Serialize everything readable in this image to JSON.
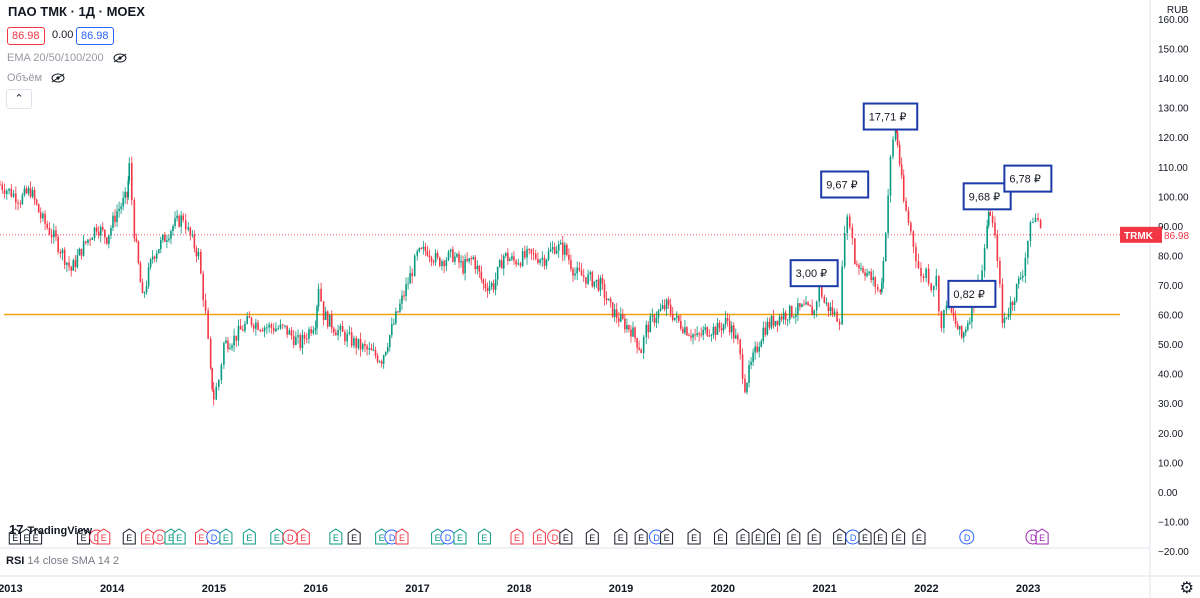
{
  "header": {
    "title": "ПАО ТМК · 1Д · MOEX",
    "bid": "86.98",
    "spread": "0.00",
    "ask": "86.98",
    "indicators": [
      "EMA 20/50/100/200",
      "Объём"
    ],
    "collapse_icon": "chevron-up-icon"
  },
  "currency": "RUB",
  "ticker_label": {
    "symbol": "TRMK",
    "value": "86.98"
  },
  "rsi_label": {
    "name": "RSI",
    "params": "14 close SMA 14 2"
  },
  "logo": "TradingView",
  "colors": {
    "up": "#089981",
    "down": "#f23645",
    "level": "#f0a30a",
    "box": "#1c3aa9",
    "price": "#f23645"
  },
  "chart_data": {
    "type": "candlestick",
    "ylim": [
      -20,
      160
    ],
    "y_ticks": [
      160,
      150,
      140,
      130,
      120,
      110,
      100,
      90,
      80,
      70,
      60,
      50,
      40,
      30,
      20,
      10,
      0,
      -10,
      -20
    ],
    "y_tick_labels": [
      "160.00",
      "150.00",
      "140.00",
      "130.00",
      "120.00",
      "110.00",
      "100.00",
      "90.00",
      "80.00",
      "70.00",
      "60.00",
      "50.00",
      "40.00",
      "30.00",
      "20.00",
      "10.00",
      "0.00",
      "−10.00",
      "−20.00"
    ],
    "x_tick_labels": [
      "2013",
      "2014",
      "2015",
      "2016",
      "2017",
      "2018",
      "2019",
      "2020",
      "2021",
      "2022",
      "2023"
    ],
    "x_tick_years": [
      2013,
      2014,
      2015,
      2016,
      2017,
      2018,
      2019,
      2020,
      2021,
      2022,
      2023
    ],
    "xlim": [
      2012.9,
      2024.2
    ],
    "last_price": 86.98,
    "horizontal_level": 60,
    "price_path": [
      [
        2012.9,
        104
      ],
      [
        2013.1,
        99
      ],
      [
        2013.2,
        102
      ],
      [
        2013.3,
        93
      ],
      [
        2013.45,
        85
      ],
      [
        2013.6,
        75
      ],
      [
        2013.7,
        82
      ],
      [
        2013.85,
        90
      ],
      [
        2013.95,
        86
      ],
      [
        2014.05,
        95
      ],
      [
        2014.15,
        100
      ],
      [
        2014.17,
        110
      ],
      [
        2014.22,
        88
      ],
      [
        2014.3,
        65
      ],
      [
        2014.4,
        80
      ],
      [
        2014.5,
        85
      ],
      [
        2014.6,
        90
      ],
      [
        2014.7,
        93
      ],
      [
        2014.75,
        88
      ],
      [
        2014.85,
        80
      ],
      [
        2014.92,
        60
      ],
      [
        2014.97,
        40
      ],
      [
        2015.0,
        32
      ],
      [
        2015.05,
        38
      ],
      [
        2015.1,
        50
      ],
      [
        2015.2,
        52
      ],
      [
        2015.35,
        58
      ],
      [
        2015.5,
        56
      ],
      [
        2015.7,
        55
      ],
      [
        2015.85,
        50
      ],
      [
        2016.0,
        58
      ],
      [
        2016.03,
        70
      ],
      [
        2016.08,
        60
      ],
      [
        2016.2,
        55
      ],
      [
        2016.4,
        50
      ],
      [
        2016.55,
        47
      ],
      [
        2016.65,
        45
      ],
      [
        2016.75,
        55
      ],
      [
        2016.85,
        65
      ],
      [
        2016.95,
        75
      ],
      [
        2017.0,
        80
      ],
      [
        2017.1,
        82
      ],
      [
        2017.2,
        78
      ],
      [
        2017.35,
        80
      ],
      [
        2017.45,
        76
      ],
      [
        2017.55,
        79
      ],
      [
        2017.65,
        70
      ],
      [
        2017.75,
        70
      ],
      [
        2017.85,
        80
      ],
      [
        2017.95,
        78
      ],
      [
        2018.1,
        80
      ],
      [
        2018.25,
        79
      ],
      [
        2018.35,
        83
      ],
      [
        2018.45,
        82
      ],
      [
        2018.55,
        74
      ],
      [
        2018.7,
        72
      ],
      [
        2018.8,
        70
      ],
      [
        2018.9,
        62
      ],
      [
        2019.0,
        58
      ],
      [
        2019.1,
        55
      ],
      [
        2019.2,
        48
      ],
      [
        2019.25,
        55
      ],
      [
        2019.35,
        60
      ],
      [
        2019.45,
        63
      ],
      [
        2019.55,
        58
      ],
      [
        2019.65,
        55
      ],
      [
        2019.75,
        52
      ],
      [
        2019.85,
        55
      ],
      [
        2019.95,
        55
      ],
      [
        2020.05,
        58
      ],
      [
        2020.15,
        50
      ],
      [
        2020.22,
        36
      ],
      [
        2020.3,
        45
      ],
      [
        2020.4,
        55
      ],
      [
        2020.5,
        58
      ],
      [
        2020.6,
        60
      ],
      [
        2020.7,
        61
      ],
      [
        2020.8,
        62
      ],
      [
        2020.9,
        61
      ],
      [
        2020.95,
        70
      ],
      [
        2021.0,
        64
      ],
      [
        2021.1,
        60
      ],
      [
        2021.15,
        59
      ],
      [
        2021.2,
        90
      ],
      [
        2021.25,
        92
      ],
      [
        2021.3,
        78
      ],
      [
        2021.4,
        75
      ],
      [
        2021.5,
        70
      ],
      [
        2021.55,
        67
      ],
      [
        2021.58,
        78
      ],
      [
        2021.65,
        112
      ],
      [
        2021.7,
        125
      ],
      [
        2021.72,
        118
      ],
      [
        2021.78,
        98
      ],
      [
        2021.85,
        88
      ],
      [
        2021.9,
        80
      ],
      [
        2021.95,
        72
      ],
      [
        2022.0,
        75
      ],
      [
        2022.05,
        70
      ],
      [
        2022.1,
        72
      ],
      [
        2022.15,
        55
      ],
      [
        2022.2,
        65
      ],
      [
        2022.25,
        60
      ],
      [
        2022.35,
        52
      ],
      [
        2022.45,
        62
      ],
      [
        2022.55,
        75
      ],
      [
        2022.6,
        90
      ],
      [
        2022.63,
        95
      ],
      [
        2022.7,
        80
      ],
      [
        2022.75,
        57
      ],
      [
        2022.85,
        65
      ],
      [
        2022.95,
        75
      ],
      [
        2023.0,
        85
      ],
      [
        2023.05,
        93
      ],
      [
        2023.1,
        92
      ],
      [
        2023.15,
        87
      ]
    ],
    "annotations": [
      {
        "label": "3,00 ₽",
        "x": 2020.9,
        "y": 74
      },
      {
        "label": "9,67 ₽",
        "x": 2021.2,
        "y": 104
      },
      {
        "label": "17,71 ₽",
        "x": 2021.65,
        "y": 127
      },
      {
        "label": "9,68 ₽",
        "x": 2022.6,
        "y": 100
      },
      {
        "label": "0,82 ₽",
        "x": 2022.45,
        "y": 67
      },
      {
        "label": "6,78 ₽",
        "x": 2023.0,
        "y": 106
      }
    ],
    "event_markers": [
      {
        "x": 2013.05,
        "l": "E",
        "c": "#131722"
      },
      {
        "x": 2013.16,
        "l": "E",
        "c": "#131722"
      },
      {
        "x": 2013.25,
        "l": "E",
        "c": "#131722"
      },
      {
        "x": 2013.72,
        "l": "E",
        "c": "#131722"
      },
      {
        "x": 2013.85,
        "l": "D",
        "c": "#f23645"
      },
      {
        "x": 2013.92,
        "l": "E",
        "c": "#f23645"
      },
      {
        "x": 2014.17,
        "l": "E",
        "c": "#131722"
      },
      {
        "x": 2014.35,
        "l": "E",
        "c": "#f23645"
      },
      {
        "x": 2014.47,
        "l": "D",
        "c": "#f23645"
      },
      {
        "x": 2014.58,
        "l": "E",
        "c": "#089981"
      },
      {
        "x": 2014.66,
        "l": "E",
        "c": "#089981"
      },
      {
        "x": 2014.88,
        "l": "E",
        "c": "#f23645"
      },
      {
        "x": 2015.0,
        "l": "D",
        "c": "#2962ff"
      },
      {
        "x": 2015.12,
        "l": "E",
        "c": "#089981"
      },
      {
        "x": 2015.35,
        "l": "E",
        "c": "#089981"
      },
      {
        "x": 2015.62,
        "l": "E",
        "c": "#089981"
      },
      {
        "x": 2015.75,
        "l": "D",
        "c": "#f23645"
      },
      {
        "x": 2015.88,
        "l": "E",
        "c": "#f23645"
      },
      {
        "x": 2016.2,
        "l": "E",
        "c": "#089981"
      },
      {
        "x": 2016.38,
        "l": "E",
        "c": "#131722"
      },
      {
        "x": 2016.65,
        "l": "E",
        "c": "#089981"
      },
      {
        "x": 2016.75,
        "l": "D",
        "c": "#2962ff"
      },
      {
        "x": 2016.85,
        "l": "E",
        "c": "#f23645"
      },
      {
        "x": 2017.2,
        "l": "E",
        "c": "#089981"
      },
      {
        "x": 2017.3,
        "l": "D",
        "c": "#2962ff"
      },
      {
        "x": 2017.42,
        "l": "E",
        "c": "#089981"
      },
      {
        "x": 2017.66,
        "l": "E",
        "c": "#089981"
      },
      {
        "x": 2017.98,
        "l": "E",
        "c": "#f23645"
      },
      {
        "x": 2018.2,
        "l": "E",
        "c": "#f23645"
      },
      {
        "x": 2018.35,
        "l": "D",
        "c": "#f23645"
      },
      {
        "x": 2018.46,
        "l": "E",
        "c": "#131722"
      },
      {
        "x": 2018.72,
        "l": "E",
        "c": "#131722"
      },
      {
        "x": 2019.0,
        "l": "E",
        "c": "#131722"
      },
      {
        "x": 2019.2,
        "l": "E",
        "c": "#131722"
      },
      {
        "x": 2019.35,
        "l": "D",
        "c": "#2962ff"
      },
      {
        "x": 2019.45,
        "l": "E",
        "c": "#131722"
      },
      {
        "x": 2019.72,
        "l": "E",
        "c": "#131722"
      },
      {
        "x": 2019.98,
        "l": "E",
        "c": "#131722"
      },
      {
        "x": 2020.2,
        "l": "E",
        "c": "#131722"
      },
      {
        "x": 2020.35,
        "l": "E",
        "c": "#131722"
      },
      {
        "x": 2020.5,
        "l": "E",
        "c": "#131722"
      },
      {
        "x": 2020.7,
        "l": "E",
        "c": "#131722"
      },
      {
        "x": 2020.9,
        "l": "E",
        "c": "#131722"
      },
      {
        "x": 2021.15,
        "l": "E",
        "c": "#131722"
      },
      {
        "x": 2021.28,
        "l": "D",
        "c": "#2962ff"
      },
      {
        "x": 2021.4,
        "l": "E",
        "c": "#131722"
      },
      {
        "x": 2021.55,
        "l": "E",
        "c": "#131722"
      },
      {
        "x": 2021.73,
        "l": "E",
        "c": "#131722"
      },
      {
        "x": 2021.93,
        "l": "E",
        "c": "#131722"
      },
      {
        "x": 2022.4,
        "l": "D",
        "c": "#2962ff"
      },
      {
        "x": 2023.05,
        "l": "D",
        "c": "#9c27b0"
      },
      {
        "x": 2023.14,
        "l": "E",
        "c": "#9c27b0"
      }
    ]
  }
}
